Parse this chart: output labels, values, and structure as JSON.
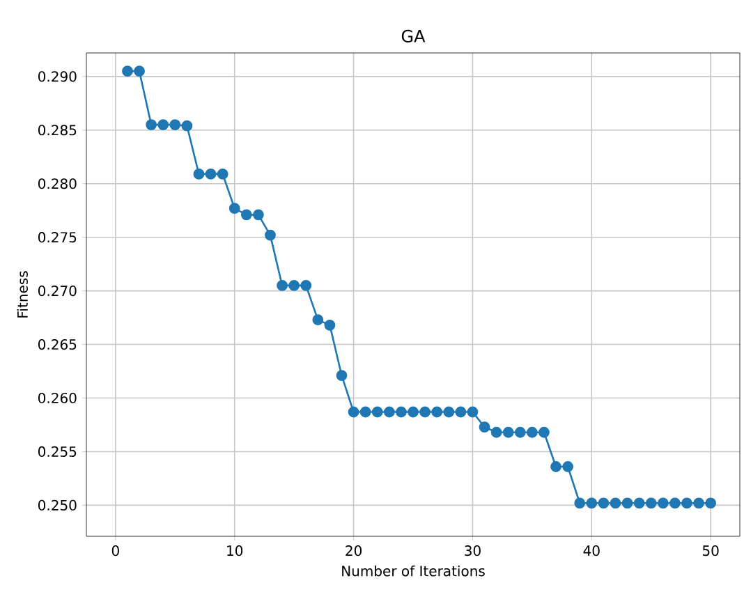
{
  "chart_data": {
    "type": "line",
    "title": "GA",
    "xlabel": "Number of Iterations",
    "ylabel": "Fitness",
    "x": [
      1,
      2,
      3,
      4,
      5,
      6,
      7,
      8,
      9,
      10,
      11,
      12,
      13,
      14,
      15,
      16,
      17,
      18,
      19,
      20,
      21,
      22,
      23,
      24,
      25,
      26,
      27,
      28,
      29,
      30,
      31,
      32,
      33,
      34,
      35,
      36,
      37,
      38,
      39,
      40,
      41,
      42,
      43,
      44,
      45,
      46,
      47,
      48,
      49,
      50
    ],
    "series": [
      {
        "color": "#1f77b4",
        "values": [
          0.2905,
          0.2905,
          0.2855,
          0.2855,
          0.2855,
          0.2854,
          0.2809,
          0.2809,
          0.2809,
          0.2777,
          0.2771,
          0.2771,
          0.2752,
          0.2705,
          0.2705,
          0.2705,
          0.2673,
          0.2668,
          0.2621,
          0.2587,
          0.2587,
          0.2587,
          0.2587,
          0.2587,
          0.2587,
          0.2587,
          0.2587,
          0.2587,
          0.2587,
          0.2587,
          0.2573,
          0.2568,
          0.2568,
          0.2568,
          0.2568,
          0.2568,
          0.2536,
          0.2536,
          0.2502,
          0.2502,
          0.2502,
          0.2502,
          0.2502,
          0.2502,
          0.2502,
          0.2502,
          0.2502,
          0.2502,
          0.2502,
          0.2502
        ]
      }
    ],
    "xlim": [
      -2.45,
      52.45
    ],
    "ylim": [
      0.2471,
      0.2922
    ],
    "xticks": [
      0,
      10,
      20,
      30,
      40,
      50
    ],
    "yticks": [
      {
        "value": 0.25,
        "label": "0.250"
      },
      {
        "value": 0.255,
        "label": "0.255"
      },
      {
        "value": 0.26,
        "label": "0.260"
      },
      {
        "value": 0.265,
        "label": "0.265"
      },
      {
        "value": 0.27,
        "label": "0.270"
      },
      {
        "value": 0.275,
        "label": "0.275"
      },
      {
        "value": 0.28,
        "label": "0.280"
      },
      {
        "value": 0.285,
        "label": "0.285"
      },
      {
        "value": 0.29,
        "label": "0.290"
      }
    ],
    "grid": true,
    "marker": "circle",
    "line_style": "solid"
  }
}
